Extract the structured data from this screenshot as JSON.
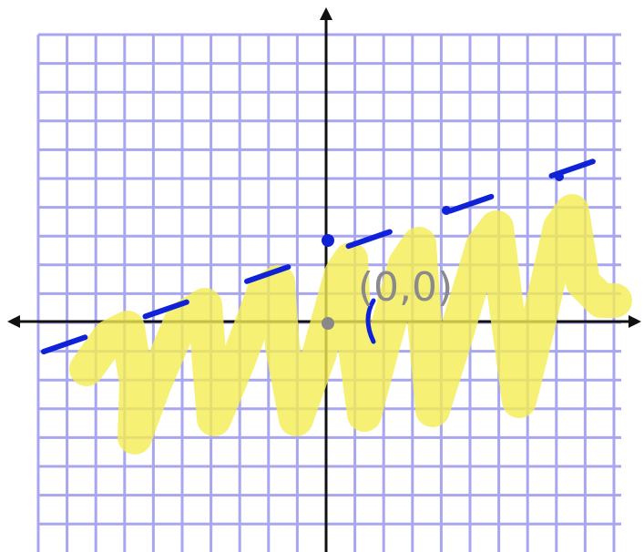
{
  "annotation": "(0,0)"
}
